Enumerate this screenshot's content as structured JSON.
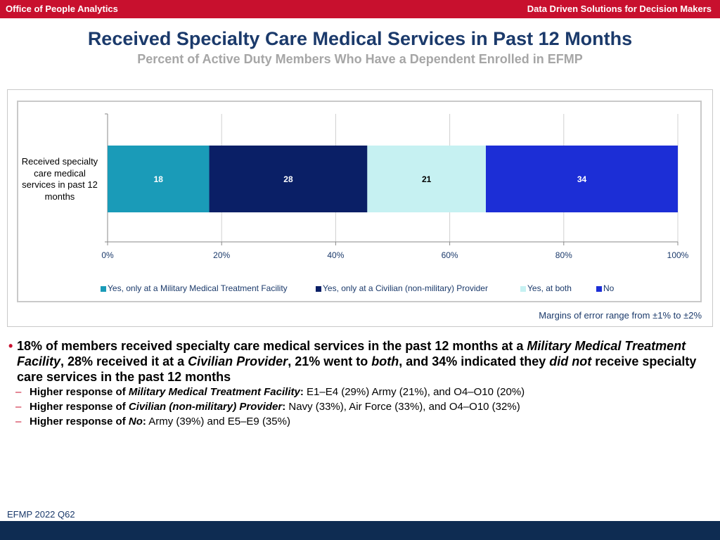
{
  "header": {
    "left_label": "Office of People Analytics",
    "right_label": "Data Driven Solutions for Decision Makers"
  },
  "title": "Received Specialty Care Medical Services in Past 12 Months",
  "subtitle": "Percent of Active Duty Members Who Have a Dependent Enrolled in EFMP",
  "chart_data": {
    "type": "bar",
    "orientation": "horizontal",
    "stacked": true,
    "categories": [
      "Received specialty care medical services in past 12 months"
    ],
    "series": [
      {
        "name": "Yes, only at a Military Medical Treatment Facility",
        "values": [
          18
        ],
        "color": "#1a9bb8",
        "label_color": "#ffffff"
      },
      {
        "name": "Yes, only at a Civilian (non-military) Provider",
        "values": [
          28
        ],
        "color": "#0a1f66",
        "label_color": "#ffffff"
      },
      {
        "name": "Yes, at both",
        "values": [
          21
        ],
        "color": "#c6f1f2",
        "label_color": "#000000"
      },
      {
        "name": "No",
        "values": [
          34
        ],
        "color": "#1c2ed6",
        "label_color": "#ffffff"
      }
    ],
    "xlim": [
      0,
      100
    ],
    "xticks": [
      "0%",
      "20%",
      "40%",
      "60%",
      "80%",
      "100%"
    ],
    "grid": true,
    "legend_position": "bottom"
  },
  "margin_of_error": "Margins of error range from ±1% to ±2%",
  "findings": {
    "main": {
      "p1": "18% of members received specialty care medical services in the past 12 months at a ",
      "e1": "Military Medical Treatment Facility",
      "p2": ", 28% received it at a ",
      "e2": "Civilian Provider",
      "p3": ", 21% went to ",
      "e3": "both",
      "p4": ", and 34% indicated they ",
      "e4": "did not",
      "p5": " receive specialty care services in the past 12 months"
    },
    "sub": [
      {
        "lead": "Higher response of ",
        "em": "Military Medical Treatment Facility",
        "colon": ":",
        "rest": " E1–E4 (29%) Army (21%), and O4–O10 (20%)"
      },
      {
        "lead": "Higher response of ",
        "em": "Civilian (non-military) Provider",
        "colon": ":",
        "rest": " Navy (33%), Air Force (33%), and O4–O10 (32%)"
      },
      {
        "lead": "Higher response of ",
        "em": "No",
        "colon": ":",
        "rest": "  Army (39%) and E5–E9 (35%)"
      }
    ]
  },
  "footer": {
    "source": "EFMP 2022 Q62"
  }
}
